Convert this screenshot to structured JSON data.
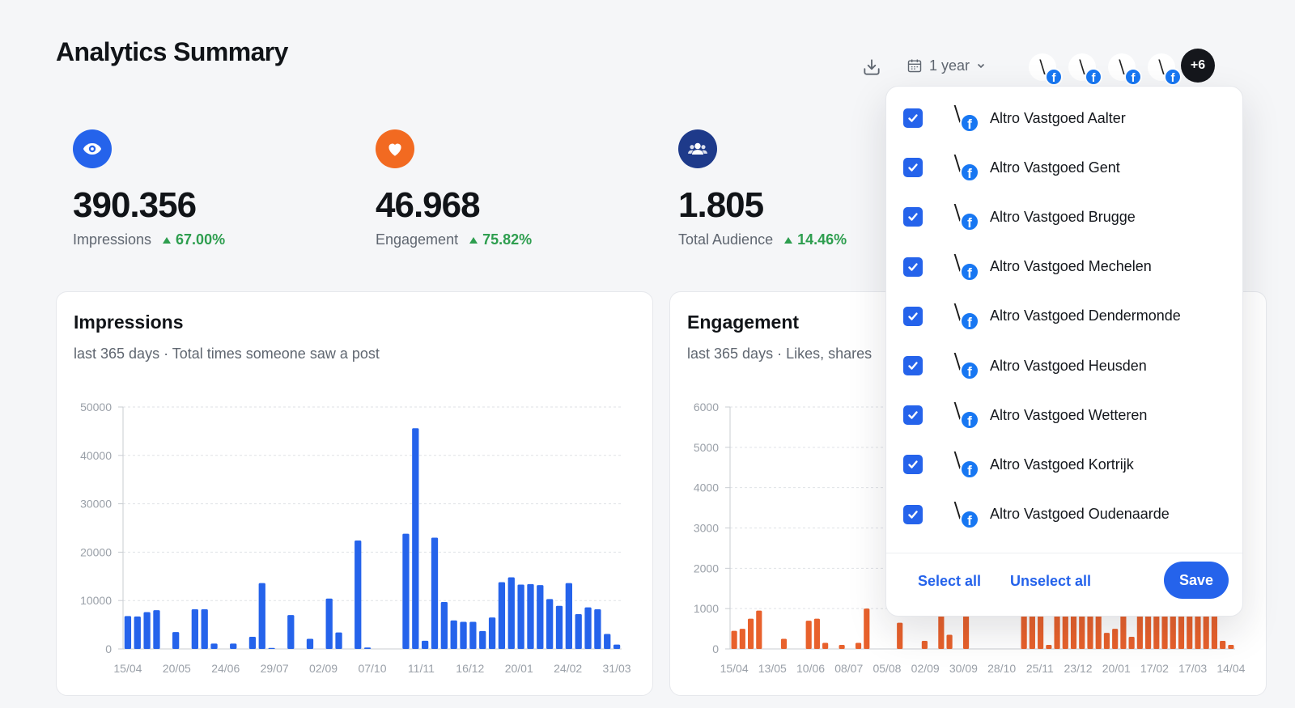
{
  "header": {
    "title": "Analytics Summary",
    "range_label": "1 year",
    "more_accounts": "+6",
    "avatar_logo": "\\"
  },
  "stats": [
    {
      "value": "390.356",
      "label": "Impressions",
      "change": "67.00%",
      "color": "#2563eb",
      "icon": "eye-icon"
    },
    {
      "value": "46.968",
      "label": "Engagement",
      "change": "75.82%",
      "color": "#f26a21",
      "icon": "heart-icon"
    },
    {
      "value": "1.805",
      "label": "Total Audience",
      "change": "14.46%",
      "color": "#1e3a8a",
      "icon": "users-icon"
    }
  ],
  "impressions_card": {
    "title": "Impressions",
    "subtitle": "last 365 days · Total times someone saw a post"
  },
  "engagement_card": {
    "title": "Engagement",
    "subtitle": "last 365 days · Likes, shares"
  },
  "dropdown": {
    "items": [
      {
        "label": "Altro Vastgoed Aalter",
        "checked": true
      },
      {
        "label": "Altro Vastgoed Gent",
        "checked": true
      },
      {
        "label": "Altro Vastgoed Brugge",
        "checked": true
      },
      {
        "label": "Altro Vastgoed Mechelen",
        "checked": true
      },
      {
        "label": "Altro Vastgoed Dendermonde",
        "checked": true
      },
      {
        "label": "Altro Vastgoed Heusden",
        "checked": true
      },
      {
        "label": "Altro Vastgoed Wetteren",
        "checked": true
      },
      {
        "label": "Altro Vastgoed Kortrijk",
        "checked": true
      },
      {
        "label": "Altro Vastgoed Oudenaarde",
        "checked": true
      }
    ],
    "select_all": "Select all",
    "unselect_all": "Unselect all",
    "save": "Save"
  },
  "chart_data": [
    {
      "type": "bar",
      "title": "Impressions",
      "color": "#2563eb",
      "ylim": [
        0,
        50000
      ],
      "yticks": [
        0,
        10000,
        20000,
        30000,
        40000,
        50000
      ],
      "xticks": [
        "15/04",
        "20/05",
        "24/06",
        "29/07",
        "02/09",
        "07/10",
        "11/11",
        "16/12",
        "20/01",
        "24/02",
        "31/03"
      ],
      "values": [
        6800,
        6700,
        7600,
        8000,
        0,
        3500,
        0,
        8200,
        8200,
        1100,
        0,
        1100,
        0,
        2500,
        13600,
        200,
        0,
        7000,
        0,
        2100,
        0,
        10400,
        3400,
        0,
        22400,
        300,
        0,
        0,
        0,
        23800,
        45600,
        1700,
        23000,
        9700,
        5900,
        5600,
        5600,
        3700,
        6500,
        13800,
        14800,
        13300,
        13400,
        13200,
        10300,
        8900,
        13600,
        7200,
        8600,
        8200,
        3100,
        900
      ]
    },
    {
      "type": "bar",
      "title": "Engagement",
      "color": "#e8612c",
      "ylim": [
        0,
        6000
      ],
      "yticks": [
        0,
        1000,
        2000,
        3000,
        4000,
        5000,
        6000
      ],
      "xticks": [
        "15/04",
        "13/05",
        "10/06",
        "08/07",
        "05/08",
        "02/09",
        "30/09",
        "28/10",
        "25/11",
        "23/12",
        "20/01",
        "17/02",
        "17/03",
        "14/04"
      ],
      "values": [
        450,
        500,
        750,
        950,
        0,
        0,
        250,
        0,
        0,
        700,
        750,
        150,
        0,
        100,
        0,
        150,
        1000,
        0,
        0,
        0,
        650,
        0,
        0,
        200,
        0,
        900,
        350,
        0,
        900,
        0,
        0,
        0,
        0,
        0,
        0,
        900,
        900,
        900,
        100,
        900,
        900,
        900,
        900,
        900,
        900,
        400,
        500,
        900,
        300,
        900,
        900,
        900,
        900,
        900,
        900,
        900,
        900,
        900,
        900,
        200,
        100
      ]
    }
  ]
}
